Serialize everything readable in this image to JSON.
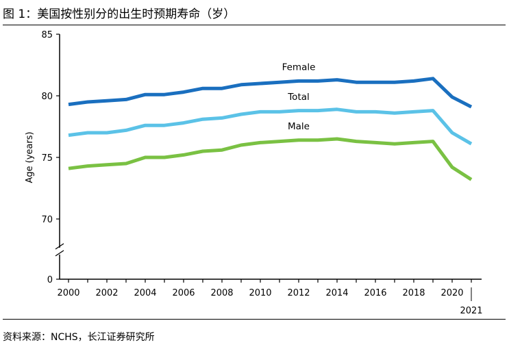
{
  "figure": {
    "title": "图 1：美国按性别分的出生时预期寿命（岁）",
    "source": "资料来源：NCHS，长江证券研究所"
  },
  "chart_data": {
    "type": "line",
    "title": "",
    "xlabel": "",
    "ylabel": "Age (years)",
    "ylim": [
      70,
      85
    ],
    "y_axis_break": true,
    "y_ticks": [
      "85",
      "80",
      "75",
      "70",
      "0"
    ],
    "x_ticks": [
      "2000",
      "2002",
      "2004",
      "2006",
      "2008",
      "2010",
      "2012",
      "2014",
      "2016",
      "2018",
      "2020"
    ],
    "x_extra_tick": "2021",
    "x": [
      2000,
      2001,
      2002,
      2003,
      2004,
      2005,
      2006,
      2007,
      2008,
      2009,
      2010,
      2011,
      2012,
      2013,
      2014,
      2015,
      2016,
      2017,
      2018,
      2019,
      2020,
      2021
    ],
    "series": [
      {
        "name": "Female",
        "color": "#1a6fbf",
        "values": [
          79.3,
          79.5,
          79.6,
          79.7,
          80.1,
          80.1,
          80.3,
          80.6,
          80.6,
          80.9,
          81.0,
          81.1,
          81.2,
          81.2,
          81.3,
          81.1,
          81.1,
          81.1,
          81.2,
          81.4,
          79.9,
          79.1
        ]
      },
      {
        "name": "Total",
        "color": "#5bc2e7",
        "values": [
          76.8,
          77.0,
          77.0,
          77.2,
          77.6,
          77.6,
          77.8,
          78.1,
          78.2,
          78.5,
          78.7,
          78.7,
          78.8,
          78.8,
          78.9,
          78.7,
          78.7,
          78.6,
          78.7,
          78.8,
          77.0,
          76.1
        ]
      },
      {
        "name": "Male",
        "color": "#7ac143",
        "values": [
          74.1,
          74.3,
          74.4,
          74.5,
          75.0,
          75.0,
          75.2,
          75.5,
          75.6,
          76.0,
          76.2,
          76.3,
          76.4,
          76.4,
          76.5,
          76.3,
          76.2,
          76.1,
          76.2,
          76.3,
          74.2,
          73.2
        ]
      }
    ]
  }
}
